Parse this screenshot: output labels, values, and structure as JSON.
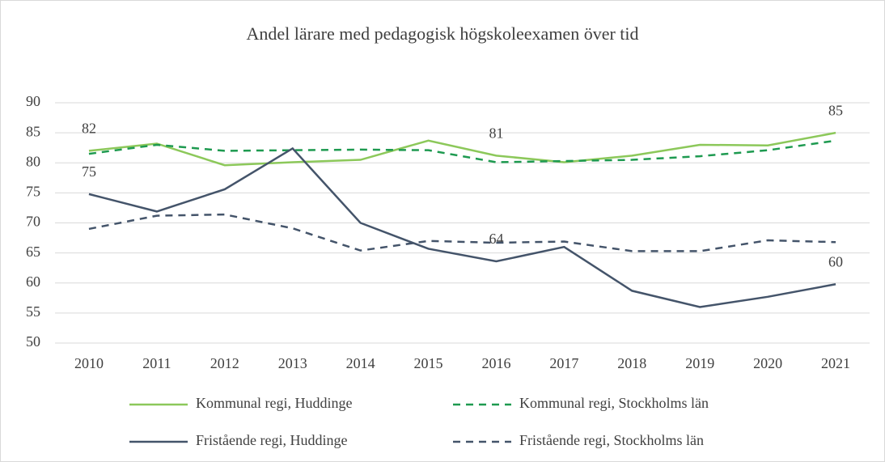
{
  "chart_data": {
    "type": "line",
    "title": "Andel lärare med pedagogisk högskoleexamen över tid",
    "categories": [
      "2010",
      "2011",
      "2012",
      "2013",
      "2014",
      "2015",
      "2016",
      "2017",
      "2018",
      "2019",
      "2020",
      "2021"
    ],
    "ylim": [
      50,
      90
    ],
    "yticks": [
      50,
      55,
      60,
      65,
      70,
      75,
      80,
      85,
      90
    ],
    "grid": true,
    "series": [
      {
        "name": "Kommunal regi, Huddinge",
        "color": "#8cc85a",
        "dash": false,
        "values": [
          82,
          83.2,
          79.6,
          80.1,
          80.5,
          83.7,
          81.2,
          80.1,
          81.2,
          83,
          82.9,
          85
        ],
        "value_labels": [
          "82",
          null,
          null,
          null,
          null,
          null,
          "81",
          null,
          null,
          null,
          null,
          "85"
        ]
      },
      {
        "name": "Kommunal regi, Stockholms län",
        "color": "#1e9a50",
        "dash": true,
        "values": [
          81.5,
          83,
          82,
          82.1,
          82.2,
          82.1,
          80.1,
          80.3,
          80.5,
          81.1,
          82.1,
          83.7
        ]
      },
      {
        "name": "Fristående regi, Huddinge",
        "color": "#44546a",
        "dash": false,
        "values": [
          74.8,
          71.9,
          75.6,
          82.4,
          70,
          65.7,
          63.6,
          66,
          58.7,
          56,
          57.7,
          59.8
        ],
        "value_labels": [
          "75",
          null,
          null,
          null,
          null,
          null,
          "64",
          null,
          null,
          null,
          null,
          "60"
        ]
      },
      {
        "name": "Fristående regi, Stockholms län",
        "color": "#44546a",
        "dash": true,
        "values": [
          69,
          71.2,
          71.4,
          69.1,
          65.4,
          67,
          66.7,
          66.9,
          65.3,
          65.3,
          67.1,
          66.8
        ]
      }
    ]
  }
}
